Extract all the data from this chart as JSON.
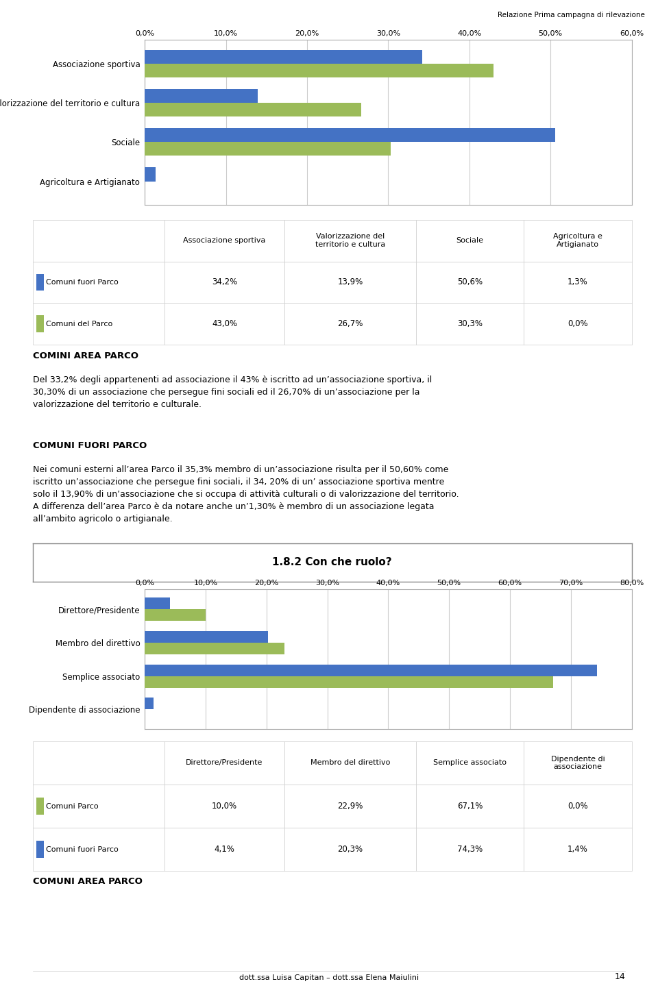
{
  "header_text": "Relazione Prima campagna di rilevazione",
  "chart1": {
    "categories": [
      "Agricoltura e Artigianato",
      "Sociale",
      "Valorizzazione del territorio e cultura",
      "Associazione sportiva"
    ],
    "comuni_fuori_parco": [
      1.3,
      50.6,
      13.9,
      34.2
    ],
    "comuni_del_parco": [
      0.0,
      30.3,
      26.7,
      43.0
    ],
    "color_fuori": "#4472C4",
    "color_parco": "#9BBB59",
    "xlim": [
      0,
      60
    ],
    "xticks": [
      0,
      10,
      20,
      30,
      40,
      50,
      60
    ],
    "xtick_labels": [
      "0,0%",
      "10,0%",
      "20,0%",
      "30,0%",
      "40,0%",
      "50,0%",
      "60,0%"
    ]
  },
  "table1": {
    "col_headers": [
      "Associazione sportiva",
      "Valorizzazione del\nterritorio e cultura",
      "Sociale",
      "Agricoltura e\nArtigianato"
    ],
    "row1_label": "Comuni fuori Parco",
    "row1_color": "#4472C4",
    "row1_values": [
      "34,2%",
      "13,9%",
      "50,6%",
      "1,3%"
    ],
    "row2_label": "Comuni del Parco",
    "row2_color": "#9BBB59",
    "row2_values": [
      "43,0%",
      "26,7%",
      "30,3%",
      "0,0%"
    ]
  },
  "text_block1_title": "COMINI AREA PARCO",
  "text_block1": "Del 33,2% degli appartenenti ad associazione il 43% è iscritto ad un’associazione sportiva, il\n30,30% di un associazione che persegue fini sociali ed il 26,70% di un’associazione per la\nvalorizzazione del territorio e culturale.",
  "text_block2_title": "COMUNI FUORI PARCO",
  "text_block2_line1": "Nei comuni esterni all’area Parco il 35,3% membro di un’associazione risulta per il 50,60% come",
  "text_block2_line2": "iscritto un’associazione che persegue fini sociali, il 34, 20% di un’ associazione sportiva mentre",
  "text_block2_line3": "solo il 13,90% di un’associazione che si occupa di attività culturali o di valorizzazione del territorio.",
  "text_block2_line4": "A differenza dell’area Parco è da notare anche un’1,30% è membro di un associazione legata",
  "text_block2_line5": "all’ambito agricolo o artigianale.",
  "section_header": "1.8.2 Con che ruolo?",
  "chart2": {
    "categories": [
      "Dipendente di associazione",
      "Semplice associato",
      "Membro del direttivo",
      "Direttore/Presidente"
    ],
    "comuni_fuori_parco": [
      1.4,
      74.3,
      20.3,
      4.1
    ],
    "comuni_parco": [
      0.0,
      67.1,
      22.9,
      10.0
    ],
    "color_fuori": "#4472C4",
    "color_parco": "#9BBB59",
    "xlim": [
      0,
      80
    ],
    "xticks": [
      0,
      10,
      20,
      30,
      40,
      50,
      60,
      70,
      80
    ],
    "xtick_labels": [
      "0,0%",
      "10,0%",
      "20,0%",
      "30,0%",
      "40,0%",
      "50,0%",
      "60,0%",
      "70,0%",
      "80,0%"
    ]
  },
  "table2": {
    "col_headers": [
      "Direttore/Presidente",
      "Membro del direttivo",
      "Semplice associato",
      "Dipendente di\nassociazione"
    ],
    "row1_label": "Comuni Parco",
    "row1_color": "#9BBB59",
    "row1_values": [
      "10,0%",
      "22,9%",
      "67,1%",
      "0,0%"
    ],
    "row2_label": "Comuni fuori Parco",
    "row2_color": "#4472C4",
    "row2_values": [
      "4,1%",
      "20,3%",
      "74,3%",
      "1,4%"
    ]
  },
  "text_block3_title": "COMUNI AREA PARCO",
  "footer": "dott.ssa Luisa Capitan – dott.ssa Elena Maiulini",
  "page_number": "14",
  "bg_color": "#FFFFFF",
  "chart_bg": "#FFFFFF",
  "grid_color": "#CCCCCC"
}
